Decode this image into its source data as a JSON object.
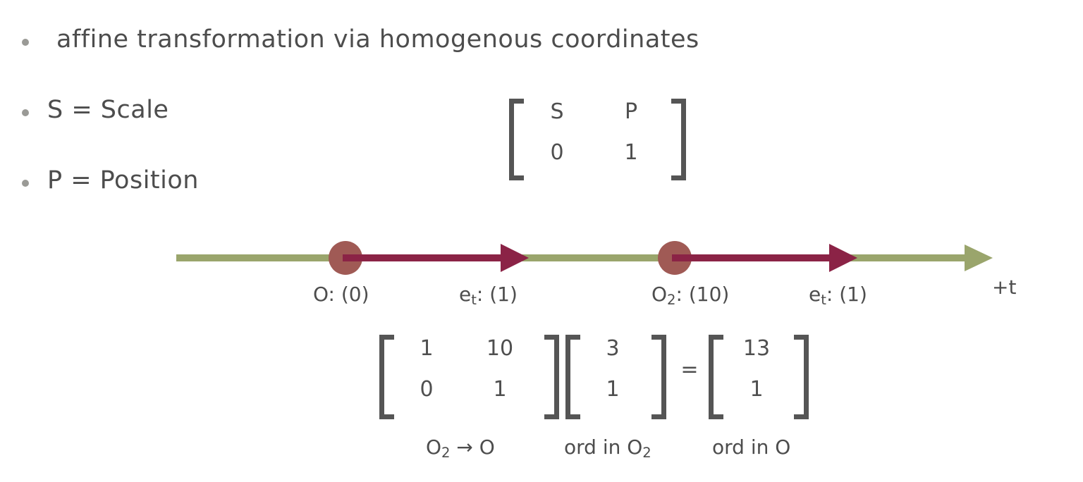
{
  "bullets": [
    {
      "text": "affine transformation via homogenous coordinates"
    },
    {
      "text": "S = Scale"
    },
    {
      "text": "P = Position"
    }
  ],
  "general_matrix": {
    "cells": [
      "S",
      "P",
      "0",
      "1"
    ]
  },
  "timeline": {
    "axis_label": "+t",
    "origin1_label": "O: (0)",
    "basis1_label": "e",
    "basis1_sub": "t",
    "basis1_value": ": (1)",
    "origin2_prefix": "O",
    "origin2_sub": "2",
    "origin2_value": ": (10)",
    "basis2_label": "e",
    "basis2_sub": "t",
    "basis2_value": ": (1)"
  },
  "equation": {
    "matrix": [
      "1",
      "10",
      "0",
      "1"
    ],
    "vector_in": [
      "3",
      "1"
    ],
    "equals": "=",
    "vector_out": [
      "13",
      "1"
    ],
    "caption_matrix_a": "O",
    "caption_matrix_sub": "2",
    "caption_matrix_b": " → O",
    "caption_in_a": "ord in O",
    "caption_in_sub": "2",
    "caption_out": "ord in O"
  },
  "colors": {
    "axis": "#9aa56c",
    "arrow": "#8b2346",
    "origin_dot": "#a05a55",
    "text": "#4d4d4d",
    "bracket": "#555555"
  }
}
